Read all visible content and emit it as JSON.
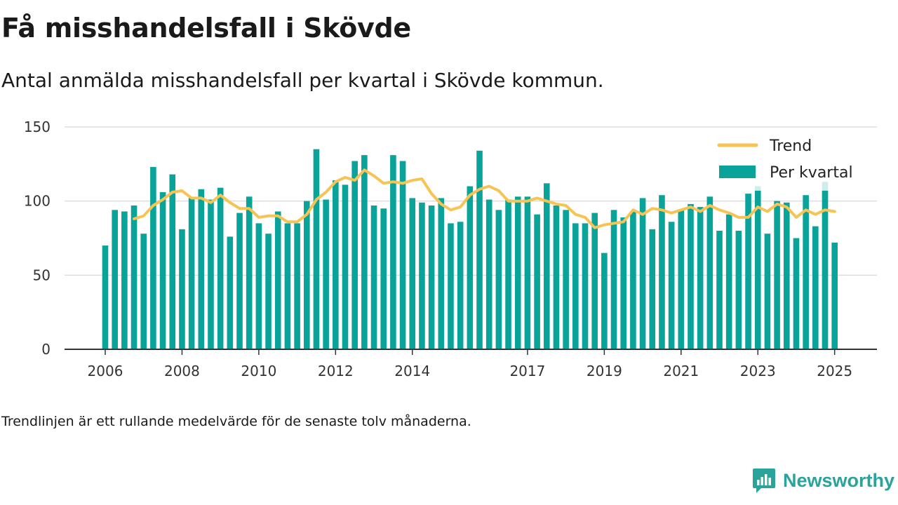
{
  "header": {
    "title": "Få misshandelsfall i Skövde",
    "subtitle": "Antal anmälda misshandelsfall per kvartal i Skövde kommun."
  },
  "footnote": "Trendlinjen är ett rullande medelvärde för de senaste tolv månaderna.",
  "brand": {
    "name": "Newsworthy",
    "icon": "newsworthy-logo-icon"
  },
  "colors": {
    "bar": "#0aa39a",
    "bar_preliminary": "#cdeeea",
    "trend": "#f7c453",
    "axis": "#333333",
    "grid": "#dddddd"
  },
  "chart_data": {
    "type": "bar",
    "title": "Få misshandelsfall i Skövde",
    "x_tick_labels": [
      "2006",
      "2008",
      "2010",
      "2012",
      "2014",
      "2017",
      "2019",
      "2021",
      "2023",
      "2025"
    ],
    "y_tick_labels": [
      "0",
      "50",
      "100",
      "150"
    ],
    "ylim": [
      0,
      150
    ],
    "grid": true,
    "legend_position": "top-right",
    "series": [
      {
        "name": "Per kvartal",
        "type": "bar",
        "x": [
          "2006Q1",
          "2006Q2",
          "2006Q3",
          "2006Q4",
          "2007Q1",
          "2007Q2",
          "2007Q3",
          "2007Q4",
          "2008Q1",
          "2008Q2",
          "2008Q3",
          "2008Q4",
          "2009Q1",
          "2009Q2",
          "2009Q3",
          "2009Q4",
          "2010Q1",
          "2010Q2",
          "2010Q3",
          "2010Q4",
          "2011Q1",
          "2011Q2",
          "2011Q3",
          "2011Q4",
          "2012Q1",
          "2012Q2",
          "2012Q3",
          "2012Q4",
          "2013Q1",
          "2013Q2",
          "2013Q3",
          "2013Q4",
          "2014Q1",
          "2014Q2",
          "2014Q3",
          "2014Q4",
          "2015Q1",
          "2015Q2",
          "2015Q3",
          "2015Q4",
          "2016Q1",
          "2016Q2",
          "2016Q3",
          "2016Q4",
          "2017Q1",
          "2017Q2",
          "2017Q3",
          "2017Q4",
          "2018Q1",
          "2018Q2",
          "2018Q3",
          "2018Q4",
          "2019Q1",
          "2019Q2",
          "2019Q3",
          "2019Q4",
          "2020Q1",
          "2020Q2",
          "2020Q3",
          "2020Q4",
          "2021Q1",
          "2021Q2",
          "2021Q3",
          "2021Q4",
          "2022Q1",
          "2022Q2",
          "2022Q3",
          "2022Q4",
          "2023Q1",
          "2023Q2",
          "2023Q3",
          "2023Q4",
          "2024Q1",
          "2024Q2",
          "2024Q3",
          "2024Q4",
          "2025Q1"
        ],
        "values": [
          70,
          94,
          93,
          97,
          78,
          123,
          106,
          118,
          81,
          102,
          108,
          101,
          109,
          76,
          92,
          103,
          85,
          78,
          93,
          85,
          85,
          100,
          135,
          101,
          114,
          111,
          127,
          131,
          97,
          95,
          131,
          127,
          102,
          99,
          97,
          102,
          85,
          86,
          110,
          134,
          101,
          94,
          101,
          103,
          103,
          91,
          112,
          97,
          94,
          85,
          85,
          92,
          65,
          94,
          89,
          93,
          102,
          81,
          104,
          86,
          94,
          98,
          96,
          103,
          80,
          91,
          80,
          105,
          107,
          78,
          100,
          99,
          75,
          104,
          83,
          107,
          72
        ],
        "preliminary_values": [
          null,
          null,
          null,
          null,
          null,
          null,
          null,
          null,
          null,
          null,
          null,
          null,
          null,
          null,
          null,
          null,
          null,
          null,
          null,
          null,
          null,
          null,
          null,
          null,
          null,
          null,
          null,
          null,
          null,
          null,
          null,
          null,
          null,
          null,
          null,
          null,
          null,
          null,
          null,
          null,
          null,
          null,
          null,
          null,
          null,
          null,
          null,
          null,
          null,
          null,
          null,
          null,
          null,
          null,
          null,
          null,
          null,
          null,
          null,
          null,
          null,
          null,
          null,
          null,
          null,
          null,
          null,
          null,
          110,
          null,
          null,
          null,
          null,
          null,
          null,
          113,
          null
        ]
      },
      {
        "name": "Trend",
        "type": "line",
        "x": [
          "2006Q4",
          "2007Q1",
          "2007Q2",
          "2007Q3",
          "2007Q4",
          "2008Q1",
          "2008Q2",
          "2008Q3",
          "2008Q4",
          "2009Q1",
          "2009Q2",
          "2009Q3",
          "2009Q4",
          "2010Q1",
          "2010Q2",
          "2010Q3",
          "2010Q4",
          "2011Q1",
          "2011Q2",
          "2011Q3",
          "2011Q4",
          "2012Q1",
          "2012Q2",
          "2012Q3",
          "2012Q4",
          "2013Q1",
          "2013Q2",
          "2013Q3",
          "2013Q4",
          "2014Q1",
          "2014Q2",
          "2014Q3",
          "2014Q4",
          "2015Q1",
          "2015Q2",
          "2015Q3",
          "2015Q4",
          "2016Q1",
          "2016Q2",
          "2016Q3",
          "2016Q4",
          "2017Q1",
          "2017Q2",
          "2017Q3",
          "2017Q4",
          "2018Q1",
          "2018Q2",
          "2018Q3",
          "2018Q4",
          "2019Q1",
          "2019Q2",
          "2019Q3",
          "2019Q4",
          "2020Q1",
          "2020Q2",
          "2020Q3",
          "2020Q4",
          "2021Q1",
          "2021Q2",
          "2021Q3",
          "2021Q4",
          "2022Q1",
          "2022Q2",
          "2022Q3",
          "2022Q4",
          "2023Q1",
          "2023Q2",
          "2023Q3",
          "2023Q4",
          "2024Q1",
          "2024Q2",
          "2024Q3",
          "2024Q4",
          "2025Q1"
        ],
        "values": [
          88,
          90,
          97,
          101,
          106,
          107,
          102,
          102,
          99,
          104,
          99,
          95,
          95,
          89,
          90,
          90,
          86,
          86,
          91,
          101,
          106,
          113,
          116,
          114,
          121,
          117,
          112,
          113,
          112,
          114,
          115,
          105,
          98,
          94,
          96,
          104,
          108,
          110,
          107,
          100,
          100,
          100,
          102,
          100,
          98,
          97,
          91,
          89,
          82,
          84,
          85,
          86,
          94,
          91,
          95,
          94,
          92,
          94,
          96,
          93,
          97,
          94,
          92,
          89,
          89,
          96,
          93,
          98,
          96,
          89,
          94,
          91,
          94,
          93
        ]
      }
    ]
  }
}
